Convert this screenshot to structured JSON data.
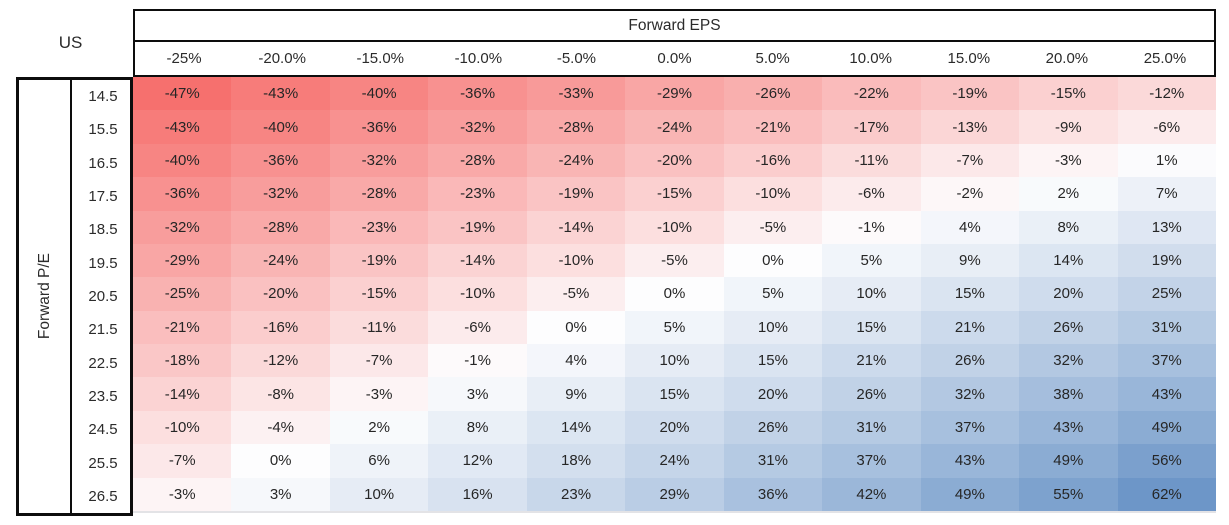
{
  "table": {
    "corner_label": "US",
    "column_axis_title": "Forward EPS",
    "row_axis_title": "Forward P/E"
  },
  "chart_data": {
    "type": "heatmap",
    "title": "US",
    "x_axis_label": "Forward EPS",
    "y_axis_label": "Forward P/E",
    "x_tick_labels": [
      "-25%",
      "-20.0%",
      "-15.0%",
      "-10.0%",
      "-5.0%",
      "0.0%",
      "5.0%",
      "10.0%",
      "15.0%",
      "20.0%",
      "25.0%"
    ],
    "y_tick_labels": [
      "14.5",
      "15.5",
      "16.5",
      "17.5",
      "18.5",
      "19.5",
      "20.5",
      "21.5",
      "22.5",
      "23.5",
      "24.5",
      "25.5",
      "26.5"
    ],
    "value_suffix": "%",
    "values_percent": [
      [
        -47,
        -43,
        -40,
        -36,
        -33,
        -29,
        -26,
        -22,
        -19,
        -15,
        -12
      ],
      [
        -43,
        -40,
        -36,
        -32,
        -28,
        -24,
        -21,
        -17,
        -13,
        -9,
        -6
      ],
      [
        -40,
        -36,
        -32,
        -28,
        -24,
        -20,
        -16,
        -11,
        -7,
        -3,
        1
      ],
      [
        -36,
        -32,
        -28,
        -23,
        -19,
        -15,
        -10,
        -6,
        -2,
        2,
        7
      ],
      [
        -32,
        -28,
        -23,
        -19,
        -14,
        -10,
        -5,
        -1,
        4,
        8,
        13
      ],
      [
        -29,
        -24,
        -19,
        -14,
        -10,
        -5,
        0,
        5,
        9,
        14,
        19
      ],
      [
        -25,
        -20,
        -15,
        -10,
        -5,
        0,
        5,
        10,
        15,
        20,
        25
      ],
      [
        -21,
        -16,
        -11,
        -6,
        0,
        5,
        10,
        15,
        21,
        26,
        31
      ],
      [
        -18,
        -12,
        -7,
        -1,
        4,
        10,
        15,
        21,
        26,
        32,
        37
      ],
      [
        -14,
        -8,
        -3,
        3,
        9,
        15,
        20,
        26,
        32,
        38,
        43
      ],
      [
        -10,
        -4,
        2,
        8,
        14,
        20,
        26,
        31,
        37,
        43,
        49
      ],
      [
        -7,
        0,
        6,
        12,
        18,
        24,
        31,
        37,
        43,
        49,
        56
      ],
      [
        -3,
        3,
        10,
        16,
        23,
        29,
        36,
        42,
        49,
        55,
        62
      ]
    ],
    "color_scale": {
      "min_value": -47,
      "min_color": "#f6706e",
      "mid_value": 0,
      "mid_color": "#fdfdfe",
      "max_value": 62,
      "max_color": "#6d96c8"
    },
    "layout": {
      "legend": "none",
      "grid_lines": "none",
      "outer_border_color": "#0d0d0d",
      "text_color": "#262626"
    }
  }
}
